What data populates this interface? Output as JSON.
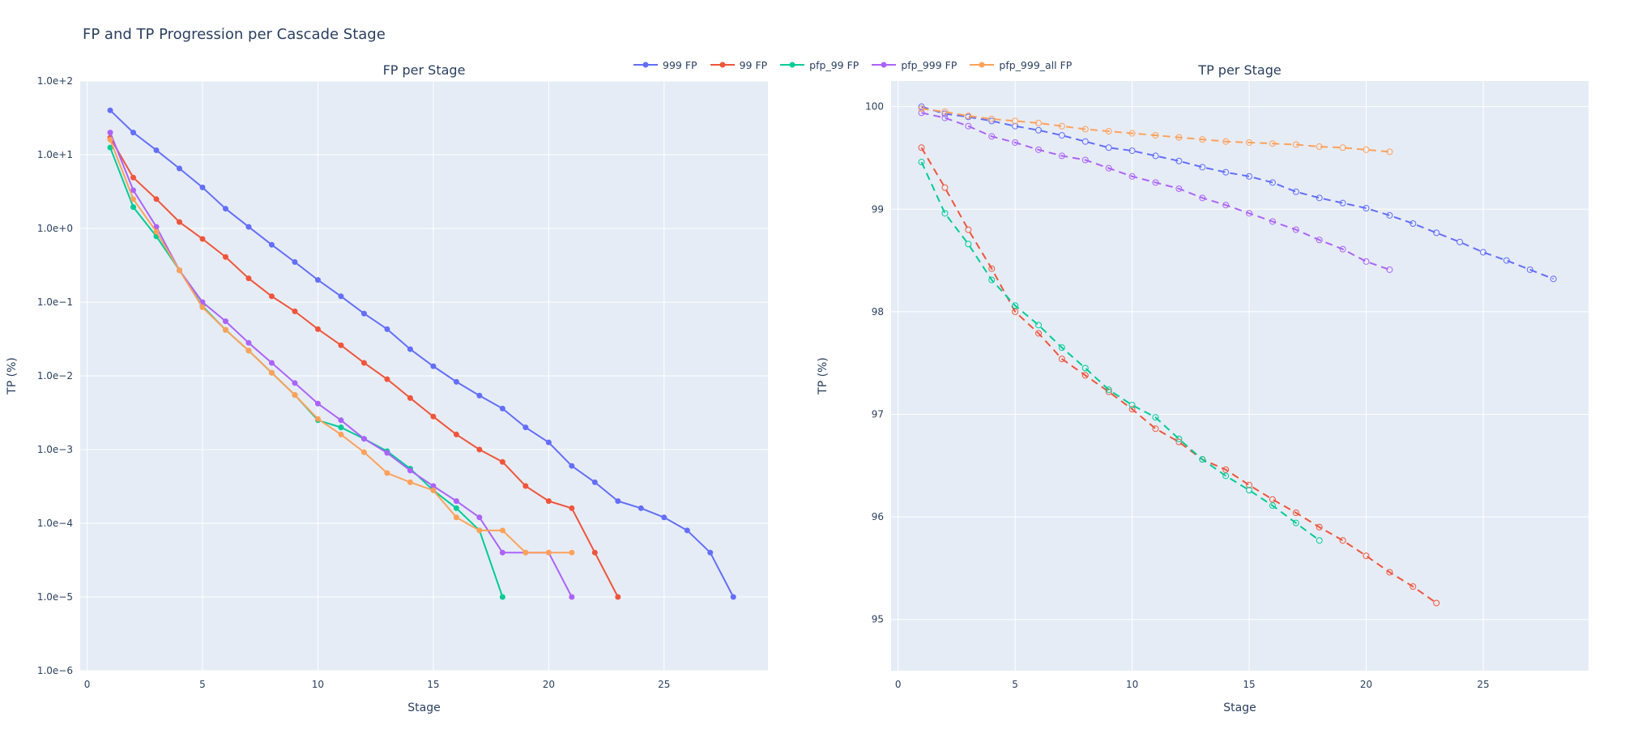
{
  "title": "FP and TP Progression per Cascade Stage",
  "legend": [
    {
      "label": "999 FP",
      "color": "#636efa"
    },
    {
      "label": "99 FP",
      "color": "#ef553b"
    },
    {
      "label": "pfp_99 FP",
      "color": "#00cc96"
    },
    {
      "label": "pfp_999 FP",
      "color": "#ab63fa"
    },
    {
      "label": "pfp_999_all FP",
      "color": "#ffa15a"
    }
  ],
  "chart_data": [
    {
      "type": "line",
      "title": "FP per Stage",
      "xlabel": "Stage",
      "ylabel": "TP (%)",
      "yscale": "log",
      "xlim": [
        -0.3,
        29.5
      ],
      "ylim": [
        1e-06,
        100
      ],
      "x_ticks": [
        0,
        5,
        10,
        15,
        20,
        25
      ],
      "y_ticks": [
        1e-06,
        1e-05,
        0.0001,
        0.001,
        0.01,
        0.1,
        1,
        10,
        100
      ],
      "y_tick_labels": [
        "1.0e−6",
        "1.0e−5",
        "1.0e−4",
        "1.0e−3",
        "1.0e−2",
        "1.0e−1",
        "1.0e+0",
        "1.0e+1",
        "1.0e+2"
      ],
      "grid": true,
      "series": [
        {
          "name": "999 FP",
          "color": "#636efa",
          "x": [
            1,
            2,
            3,
            4,
            5,
            6,
            7,
            8,
            9,
            10,
            11,
            12,
            13,
            14,
            15,
            16,
            17,
            18,
            19,
            20,
            21,
            22,
            23,
            24,
            25,
            26,
            27,
            28
          ],
          "y": [
            40,
            20,
            11.5,
            6.5,
            3.6,
            1.85,
            1.05,
            0.6,
            0.35,
            0.2,
            0.12,
            0.07,
            0.043,
            0.023,
            0.0135,
            0.0083,
            0.0054,
            0.0036,
            0.002,
            0.00125,
            0.0006,
            0.00036,
            0.0002,
            0.00016,
            0.00012,
            8e-05,
            4e-05,
            1e-05
          ]
        },
        {
          "name": "99 FP",
          "color": "#ef553b",
          "x": [
            1,
            2,
            3,
            4,
            5,
            6,
            7,
            8,
            9,
            10,
            11,
            12,
            13,
            14,
            15,
            16,
            17,
            18,
            19,
            20,
            21,
            22,
            23
          ],
          "y": [
            17,
            4.9,
            2.5,
            1.22,
            0.72,
            0.41,
            0.21,
            0.12,
            0.075,
            0.043,
            0.026,
            0.015,
            0.009,
            0.005,
            0.0028,
            0.0016,
            0.001,
            0.00068,
            0.00032,
            0.0002,
            0.00016,
            4e-05,
            1e-05
          ]
        },
        {
          "name": "pfp_99 FP",
          "color": "#00cc96",
          "x": [
            1,
            2,
            3,
            4,
            5,
            6,
            7,
            8,
            9,
            10,
            11,
            12,
            13,
            14,
            15,
            16,
            17,
            18
          ],
          "y": [
            12.5,
            1.95,
            0.78,
            0.27,
            0.088,
            0.042,
            0.022,
            0.011,
            0.0055,
            0.0025,
            0.002,
            0.0014,
            0.00095,
            0.00055,
            0.00028,
            0.00016,
            8e-05,
            1e-05
          ]
        },
        {
          "name": "pfp_999 FP",
          "color": "#ab63fa",
          "x": [
            1,
            2,
            3,
            4,
            5,
            6,
            7,
            8,
            9,
            10,
            11,
            12,
            13,
            14,
            15,
            16,
            17,
            18,
            19,
            20,
            21
          ],
          "y": [
            20,
            3.3,
            1.05,
            0.27,
            0.1,
            0.055,
            0.028,
            0.015,
            0.008,
            0.0042,
            0.0025,
            0.0014,
            0.0009,
            0.00052,
            0.00032,
            0.0002,
            0.00012,
            4e-05,
            4e-05,
            4e-05,
            1e-05
          ]
        },
        {
          "name": "pfp_999_all FP",
          "color": "#ffa15a",
          "x": [
            1,
            2,
            3,
            4,
            5,
            6,
            7,
            8,
            9,
            10,
            11,
            12,
            13,
            14,
            15,
            16,
            17,
            18,
            19,
            20,
            21
          ],
          "y": [
            16,
            2.5,
            0.9,
            0.27,
            0.085,
            0.042,
            0.022,
            0.011,
            0.0055,
            0.0026,
            0.0016,
            0.00092,
            0.00048,
            0.00036,
            0.00028,
            0.00012,
            8e-05,
            8e-05,
            4e-05,
            4e-05,
            4e-05
          ]
        }
      ]
    },
    {
      "type": "line",
      "title": "TP per Stage",
      "xlabel": "Stage",
      "ylabel": "TP (%)",
      "yscale": "linear",
      "line_style": "dashed",
      "marker": "open-circle",
      "xlim": [
        -0.3,
        29.5
      ],
      "ylim": [
        94.5,
        100.25
      ],
      "x_ticks": [
        0,
        5,
        10,
        15,
        20,
        25
      ],
      "y_ticks": [
        95,
        96,
        97,
        98,
        99,
        100
      ],
      "grid": true,
      "series": [
        {
          "color": "#636efa",
          "x": [
            1,
            2,
            3,
            4,
            5,
            6,
            7,
            8,
            9,
            10,
            11,
            12,
            13,
            14,
            15,
            16,
            17,
            18,
            19,
            20,
            21,
            22,
            23,
            24,
            25,
            26,
            27,
            28
          ],
          "y": [
            100.0,
            99.93,
            99.9,
            99.86,
            99.81,
            99.77,
            99.72,
            99.66,
            99.6,
            99.57,
            99.52,
            99.47,
            99.41,
            99.36,
            99.32,
            99.26,
            99.17,
            99.11,
            99.06,
            99.01,
            98.94,
            98.86,
            98.77,
            98.68,
            98.58,
            98.5,
            98.41,
            98.32
          ]
        },
        {
          "color": "#ef553b",
          "x": [
            1,
            2,
            3,
            4,
            5,
            6,
            7,
            8,
            9,
            10,
            11,
            12,
            13,
            14,
            15,
            16,
            17,
            18,
            19,
            20,
            21,
            22,
            23
          ],
          "y": [
            99.6,
            99.21,
            98.8,
            98.42,
            98.0,
            97.79,
            97.54,
            97.38,
            97.22,
            97.05,
            96.86,
            96.73,
            96.56,
            96.46,
            96.31,
            96.17,
            96.04,
            95.9,
            95.77,
            95.62,
            95.46,
            95.32,
            95.16
          ]
        },
        {
          "color": "#00cc96",
          "x": [
            1,
            2,
            3,
            4,
            5,
            6,
            7,
            8,
            9,
            10,
            11,
            12,
            13,
            14,
            15,
            16,
            17,
            18
          ],
          "y": [
            99.46,
            98.96,
            98.66,
            98.31,
            98.06,
            97.87,
            97.65,
            97.45,
            97.24,
            97.09,
            96.97,
            96.76,
            96.56,
            96.4,
            96.26,
            96.11,
            95.94,
            95.77
          ]
        },
        {
          "color": "#ab63fa",
          "x": [
            1,
            2,
            3,
            4,
            5,
            6,
            7,
            8,
            9,
            10,
            11,
            12,
            13,
            14,
            15,
            16,
            17,
            18,
            19,
            20,
            21
          ],
          "y": [
            99.94,
            99.89,
            99.81,
            99.71,
            99.65,
            99.58,
            99.52,
            99.48,
            99.4,
            99.32,
            99.26,
            99.2,
            99.11,
            99.04,
            98.96,
            98.88,
            98.8,
            98.7,
            98.61,
            98.49,
            98.41
          ]
        },
        {
          "color": "#ffa15a",
          "x": [
            1,
            2,
            3,
            4,
            5,
            6,
            7,
            8,
            9,
            10,
            11,
            12,
            13,
            14,
            15,
            16,
            17,
            18,
            19,
            20,
            21
          ],
          "y": [
            99.98,
            99.95,
            99.91,
            99.88,
            99.86,
            99.84,
            99.81,
            99.78,
            99.76,
            99.74,
            99.72,
            99.7,
            99.68,
            99.66,
            99.65,
            99.64,
            99.63,
            99.61,
            99.6,
            99.58,
            99.56
          ]
        }
      ]
    }
  ]
}
